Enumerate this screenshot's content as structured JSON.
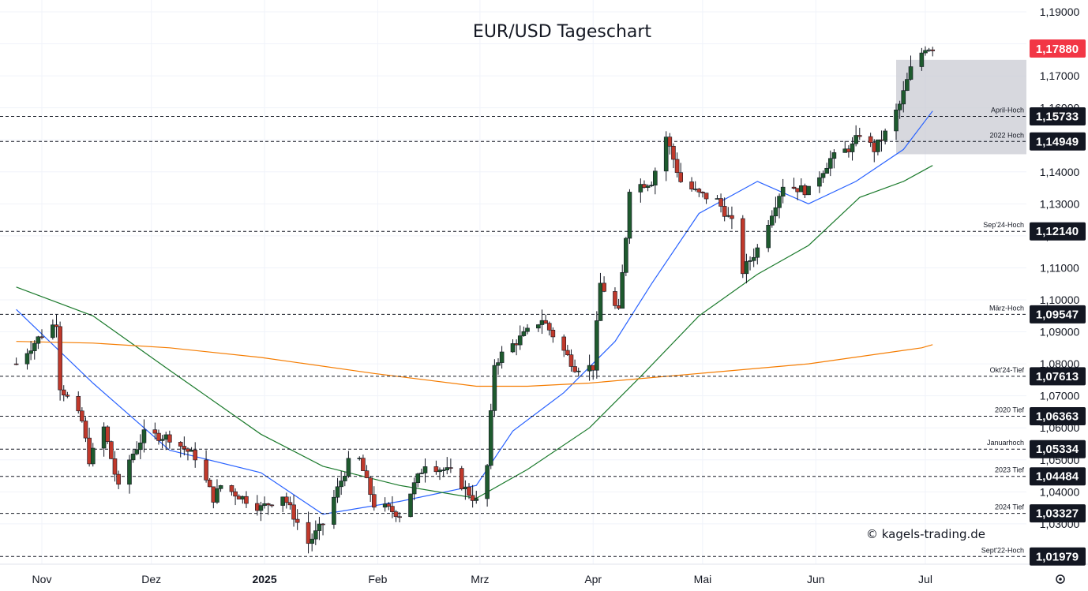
{
  "chart_data": {
    "type": "candlestick",
    "title": "EUR/USD Tageschart",
    "y_ticks": [
      "1,19000",
      "1,18000",
      "1,17000",
      "1,16000",
      "1,15000",
      "1,14000",
      "1,13000",
      "1,12000",
      "1,11000",
      "1,10000",
      "1,09000",
      "1,08000",
      "1,07000",
      "1,06000",
      "1,05000",
      "1,04000",
      "1,03000"
    ],
    "ylim": [
      1.0174,
      1.19
    ],
    "x_ticks": [
      {
        "label": "Nov",
        "date": "2024-11-01",
        "bold": false
      },
      {
        "label": "Dez",
        "date": "2024-12-01",
        "bold": false
      },
      {
        "label": "2025",
        "date": "2025-01-01",
        "bold": true
      },
      {
        "label": "Feb",
        "date": "2025-02-01",
        "bold": false
      },
      {
        "label": "Mrz",
        "date": "2025-03-01",
        "bold": false
      },
      {
        "label": "Apr",
        "date": "2025-04-01",
        "bold": false
      },
      {
        "label": "Mai",
        "date": "2025-05-01",
        "bold": false
      },
      {
        "label": "Jun",
        "date": "2025-06-01",
        "bold": false
      },
      {
        "label": "Jul",
        "date": "2025-07-01",
        "bold": false
      }
    ],
    "last_price": {
      "value": "1,17880",
      "color": "#f23645"
    },
    "levels": [
      {
        "name": "April-Hoch",
        "value": 1.15733,
        "label": "1,15733"
      },
      {
        "name": "2022 Hoch",
        "value": 1.14949,
        "label": "1,14949"
      },
      {
        "name": "Sep'24-Hoch",
        "value": 1.1214,
        "label": "1,12140"
      },
      {
        "name": "März-Hoch",
        "value": 1.09547,
        "label": "1,09547"
      },
      {
        "name": "Okt'24-Tief",
        "value": 1.07613,
        "label": "1,07613"
      },
      {
        "name": "2020 Tief",
        "value": 1.06363,
        "label": "1,06363"
      },
      {
        "name": "Januarhoch",
        "value": 1.05334,
        "label": "1,05334"
      },
      {
        "name": "2023 Tief",
        "value": 1.04484,
        "label": "1,04484"
      },
      {
        "name": "2024 Tief",
        "value": 1.03327,
        "label": "1,03327"
      },
      {
        "name": "Sept'22-Hoch",
        "value": 1.01979,
        "label": "1,01979"
      }
    ],
    "zone": {
      "from_date": "2025-06-23",
      "to_date": "2025-07-07",
      "low": 1.1455,
      "high": 1.175
    },
    "price_anchors": [
      [
        "2024-10-25",
        1.08
      ],
      [
        "2024-10-31",
        1.088
      ],
      [
        "2024-11-01",
        1.089
      ],
      [
        "2024-11-05",
        1.093
      ],
      [
        "2024-11-06",
        1.073
      ],
      [
        "2024-11-12",
        1.062
      ],
      [
        "2024-11-14",
        1.05
      ],
      [
        "2024-11-18",
        1.06
      ],
      [
        "2024-11-22",
        1.041
      ],
      [
        "2024-11-25",
        1.05
      ],
      [
        "2024-11-29",
        1.058
      ],
      [
        "2024-12-06",
        1.057
      ],
      [
        "2024-12-13",
        1.051
      ],
      [
        "2024-12-18",
        1.038
      ],
      [
        "2024-12-20",
        1.042
      ],
      [
        "2024-12-31",
        1.035
      ],
      [
        "2025-01-06",
        1.039
      ],
      [
        "2025-01-13",
        1.024
      ],
      [
        "2025-01-17",
        1.03
      ],
      [
        "2025-01-24",
        1.049
      ],
      [
        "2025-01-27",
        1.05
      ],
      [
        "2025-01-31",
        1.036
      ],
      [
        "2025-02-03",
        1.035
      ],
      [
        "2025-02-07",
        1.033
      ],
      [
        "2025-02-14",
        1.049
      ],
      [
        "2025-02-21",
        1.046
      ],
      [
        "2025-02-28",
        1.037
      ],
      [
        "2025-03-03",
        1.048
      ],
      [
        "2025-03-05",
        1.08
      ],
      [
        "2025-03-07",
        1.083
      ],
      [
        "2025-03-18",
        1.094
      ],
      [
        "2025-03-27",
        1.079
      ],
      [
        "2025-04-01",
        1.079
      ],
      [
        "2025-04-03",
        1.105
      ],
      [
        "2025-04-08",
        1.096
      ],
      [
        "2025-04-10",
        1.12
      ],
      [
        "2025-04-11",
        1.135
      ],
      [
        "2025-04-17",
        1.137
      ],
      [
        "2025-04-21",
        1.151
      ],
      [
        "2025-04-25",
        1.137
      ],
      [
        "2025-04-30",
        1.133
      ],
      [
        "2025-05-05",
        1.131
      ],
      [
        "2025-05-09",
        1.124
      ],
      [
        "2025-05-12",
        1.109
      ],
      [
        "2025-05-16",
        1.116
      ],
      [
        "2025-05-23",
        1.136
      ],
      [
        "2025-05-30",
        1.134
      ],
      [
        "2025-06-05",
        1.144
      ],
      [
        "2025-06-11",
        1.148
      ],
      [
        "2025-06-13",
        1.152
      ],
      [
        "2025-06-17",
        1.147
      ],
      [
        "2025-06-20",
        1.152
      ],
      [
        "2025-06-24",
        1.161
      ],
      [
        "2025-06-27",
        1.172
      ],
      [
        "2025-07-01",
        1.179
      ],
      [
        "2025-07-03",
        1.1788
      ]
    ],
    "moving_averages": [
      {
        "color": "#2962ff",
        "points": [
          [
            "2024-10-25",
            1.097
          ],
          [
            "2024-11-15",
            1.074
          ],
          [
            "2024-12-06",
            1.053
          ],
          [
            "2024-12-31",
            1.046
          ],
          [
            "2025-01-17",
            1.033
          ],
          [
            "2025-02-07",
            1.037
          ],
          [
            "2025-02-28",
            1.042
          ],
          [
            "2025-03-10",
            1.059
          ],
          [
            "2025-03-24",
            1.071
          ],
          [
            "2025-04-07",
            1.087
          ],
          [
            "2025-04-17",
            1.105
          ],
          [
            "2025-04-30",
            1.127
          ],
          [
            "2025-05-16",
            1.137
          ],
          [
            "2025-05-30",
            1.13
          ],
          [
            "2025-06-12",
            1.137
          ],
          [
            "2025-06-25",
            1.147
          ],
          [
            "2025-07-03",
            1.159
          ]
        ]
      },
      {
        "color": "#1b7a2c",
        "points": [
          [
            "2024-10-25",
            1.104
          ],
          [
            "2024-11-15",
            1.095
          ],
          [
            "2024-12-06",
            1.078
          ],
          [
            "2024-12-31",
            1.058
          ],
          [
            "2025-01-17",
            1.048
          ],
          [
            "2025-02-07",
            1.042
          ],
          [
            "2025-02-28",
            1.038
          ],
          [
            "2025-03-14",
            1.047
          ],
          [
            "2025-03-31",
            1.06
          ],
          [
            "2025-04-14",
            1.076
          ],
          [
            "2025-04-30",
            1.095
          ],
          [
            "2025-05-16",
            1.108
          ],
          [
            "2025-05-30",
            1.117
          ],
          [
            "2025-06-13",
            1.132
          ],
          [
            "2025-06-25",
            1.137
          ],
          [
            "2025-07-03",
            1.142
          ]
        ]
      },
      {
        "color": "#f57c00",
        "points": [
          [
            "2024-10-25",
            1.087
          ],
          [
            "2024-11-15",
            1.0865
          ],
          [
            "2024-12-06",
            1.085
          ],
          [
            "2024-12-31",
            1.082
          ],
          [
            "2025-01-31",
            1.077
          ],
          [
            "2025-02-28",
            1.073
          ],
          [
            "2025-03-14",
            1.073
          ],
          [
            "2025-03-31",
            1.074
          ],
          [
            "2025-04-30",
            1.077
          ],
          [
            "2025-05-30",
            1.08
          ],
          [
            "2025-06-30",
            1.085
          ],
          [
            "2025-07-03",
            1.086
          ]
        ]
      }
    ]
  },
  "watermark": "© kagels-trading.de",
  "settings_icon": "gear-icon"
}
